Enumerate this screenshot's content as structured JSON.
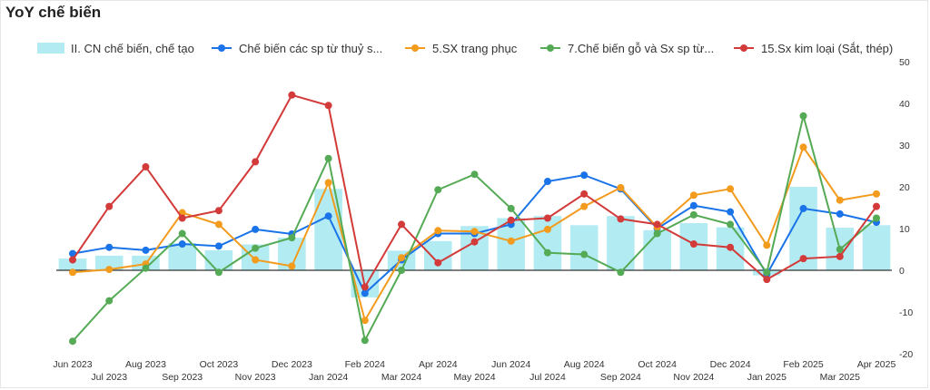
{
  "title": "YoY chế biến",
  "colors": {
    "bar": "#b2ebf2",
    "zero_line": "#333333",
    "text": "#333333"
  },
  "chart_data": {
    "type": "bar",
    "categories": [
      "Jun 2023",
      "Jul 2023",
      "Aug 2023",
      "Sep 2023",
      "Oct 2023",
      "Nov 2023",
      "Dec 2023",
      "Jan 2024",
      "Feb 2024",
      "Mar 2024",
      "Apr 2024",
      "May 2024",
      "Jun 2024",
      "Jul 2024",
      "Aug 2024",
      "Sep 2024",
      "Oct 2024",
      "Nov 2024",
      "Dec 2024",
      "Jan 2025",
      "Feb 2025",
      "Mar 2025",
      "Apr 2025"
    ],
    "ylim": [
      -20,
      50
    ],
    "yticks": [
      -20,
      -10,
      0,
      10,
      20,
      30,
      40,
      50
    ],
    "grid": false,
    "legend_position": "top",
    "series": [
      {
        "name": "II. CN chế biến, chế tạo",
        "kind": "bar",
        "color": "#b2ebf2",
        "values": [
          2.8,
          3.5,
          3.5,
          6.5,
          4.8,
          6.2,
          7.8,
          19.5,
          -6.5,
          4.7,
          7.0,
          10.6,
          12.5,
          13.0,
          10.8,
          13.0,
          9.6,
          11.3,
          10.3,
          -1.2,
          20.0,
          10.2,
          10.8
        ]
      },
      {
        "name": "Chế biến các sp từ thuỷ s...",
        "kind": "line",
        "color": "#1a73e8",
        "values": [
          4.0,
          5.5,
          4.8,
          6.3,
          5.8,
          9.8,
          8.7,
          13.0,
          -5.5,
          2.5,
          8.8,
          8.8,
          11.0,
          21.3,
          22.8,
          19.5,
          10.0,
          15.5,
          14.0,
          -1.0,
          14.8,
          13.5,
          11.5
        ]
      },
      {
        "name": "5.SX trang phục",
        "kind": "line",
        "color": "#f29b1d",
        "values": [
          -0.5,
          0.2,
          1.5,
          13.8,
          11.0,
          2.5,
          1.0,
          21.0,
          -12.0,
          3.0,
          9.5,
          9.3,
          7.0,
          9.8,
          15.3,
          19.8,
          10.3,
          18.0,
          19.5,
          6.0,
          29.5,
          16.8,
          18.3
        ]
      },
      {
        "name": "7.Chế biến gỗ và Sx sp từ...",
        "kind": "line",
        "color": "#55aa55",
        "values": [
          -17.0,
          -7.3,
          0.5,
          8.8,
          -0.5,
          5.3,
          7.8,
          26.8,
          -16.8,
          0.0,
          19.3,
          23.0,
          14.8,
          4.2,
          3.8,
          -0.5,
          8.8,
          13.3,
          11.0,
          -0.5,
          37.0,
          5.0,
          12.5
        ]
      },
      {
        "name": "15.Sx kim loại (Sắt, thép)",
        "kind": "line",
        "color": "#d33a3a",
        "values": [
          2.5,
          15.3,
          24.8,
          12.5,
          14.3,
          26.0,
          42.0,
          39.5,
          -4.0,
          11.0,
          1.8,
          6.8,
          12.0,
          12.5,
          18.3,
          12.3,
          11.0,
          6.3,
          5.5,
          -2.2,
          2.8,
          3.3,
          15.3
        ]
      }
    ]
  }
}
